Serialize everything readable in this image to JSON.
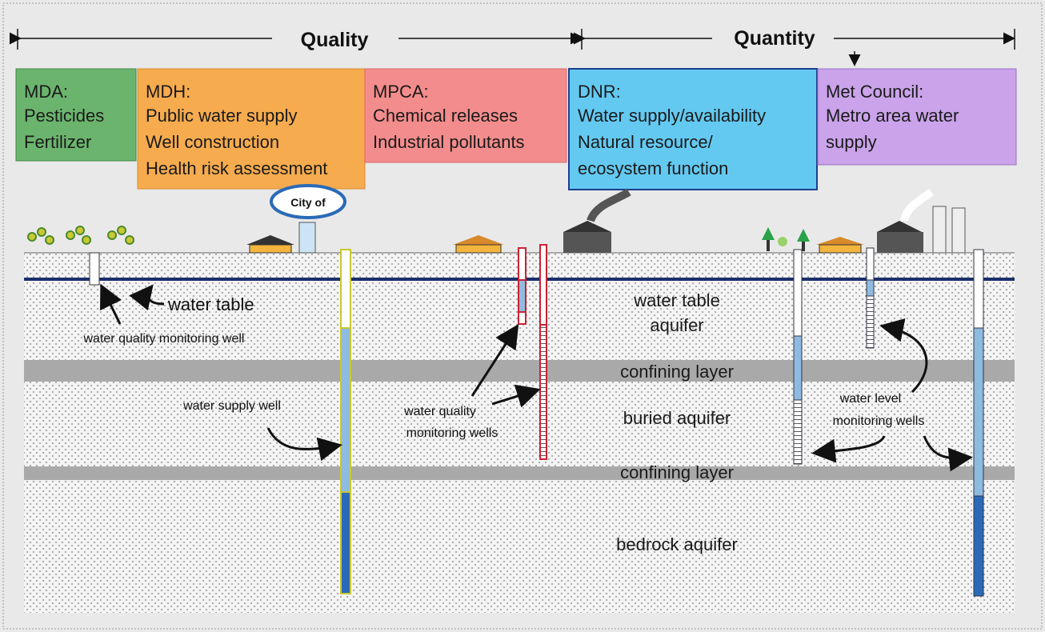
{
  "header": {
    "quality": "Quality",
    "quantity": "Quantity"
  },
  "agencies": [
    {
      "name": "MDA:",
      "lines": [
        "Pesticides",
        "Fertilizer"
      ]
    },
    {
      "name": "MDH:",
      "lines": [
        "Public water supply",
        "Well construction",
        "Health risk assessment"
      ]
    },
    {
      "name": "MPCA:",
      "lines": [
        "Chemical releases",
        "Industrial pollutants"
      ]
    },
    {
      "name": "DNR:",
      "lines": [
        "Water supply/availability",
        "Natural resource/",
        "ecosystem function"
      ]
    },
    {
      "name": "Met Council:",
      "lines": [
        "Metro area water",
        "supply"
      ]
    }
  ],
  "city_sign": "City of",
  "layers": [
    {
      "lines": [
        "water table",
        "aquifer"
      ]
    },
    {
      "lines": [
        "confining layer"
      ]
    },
    {
      "lines": [
        "buried aquifer"
      ]
    },
    {
      "lines": [
        "confining layer"
      ]
    },
    {
      "lines": [
        "bedrock aquifer"
      ]
    }
  ],
  "labels": {
    "water_table": "water table",
    "quality_well": "water quality monitoring well",
    "supply_well": "water supply well",
    "quality_wells": [
      "water quality",
      "monitoring wells"
    ],
    "level_wells": [
      "water level",
      "monitoring wells"
    ]
  }
}
